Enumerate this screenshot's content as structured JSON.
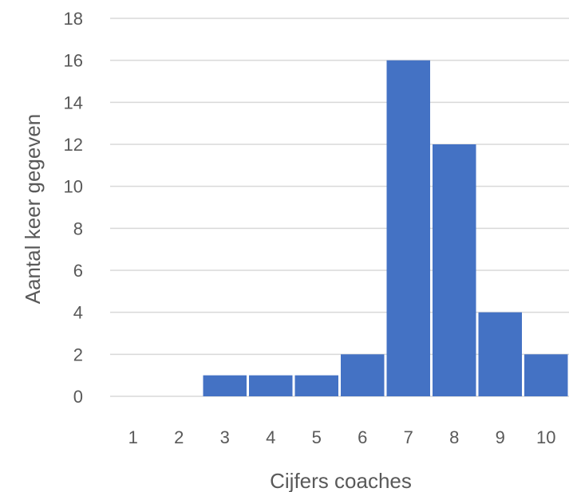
{
  "chart_data": {
    "type": "bar",
    "categories": [
      "1",
      "2",
      "3",
      "4",
      "5",
      "6",
      "7",
      "8",
      "9",
      "10"
    ],
    "values": [
      0,
      0,
      1,
      1,
      1,
      2,
      16,
      12,
      4,
      2
    ],
    "xlabel": "Cijfers coaches",
    "ylabel": "Aantal keer gegeven",
    "ylim": [
      0,
      18
    ],
    "yticks": [
      "0",
      "2",
      "4",
      "6",
      "8",
      "10",
      "12",
      "14",
      "16",
      "18"
    ],
    "grid": true,
    "bar_color": "#4472C4",
    "grid_color": "#D9D9D9",
    "text_color": "#595959"
  }
}
